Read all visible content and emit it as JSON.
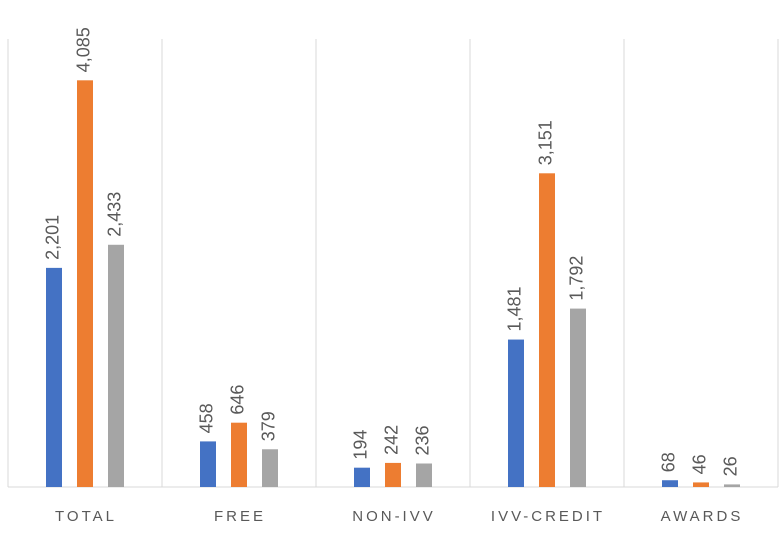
{
  "chart_data": {
    "type": "bar",
    "categories": [
      "TOTAL",
      "FREE",
      "NON-IVV",
      "IVV-CREDIT",
      "AWARDS"
    ],
    "series": [
      {
        "color": "#4472c4",
        "values": [
          2201,
          458,
          194,
          1481,
          68
        ],
        "value_labels": [
          "2,201",
          "458",
          "194",
          "1,481",
          "68"
        ]
      },
      {
        "color": "#ed7d31",
        "values": [
          4085,
          646,
          242,
          3151,
          46
        ],
        "value_labels": [
          "4,085",
          "646",
          "242",
          "3,151",
          "46"
        ]
      },
      {
        "color": "#a5a5a5",
        "values": [
          2433,
          379,
          236,
          1792,
          26
        ],
        "value_labels": [
          "2,433",
          "379",
          "236",
          "1,792",
          "26"
        ]
      }
    ],
    "ylim": [
      0,
      4500
    ]
  }
}
